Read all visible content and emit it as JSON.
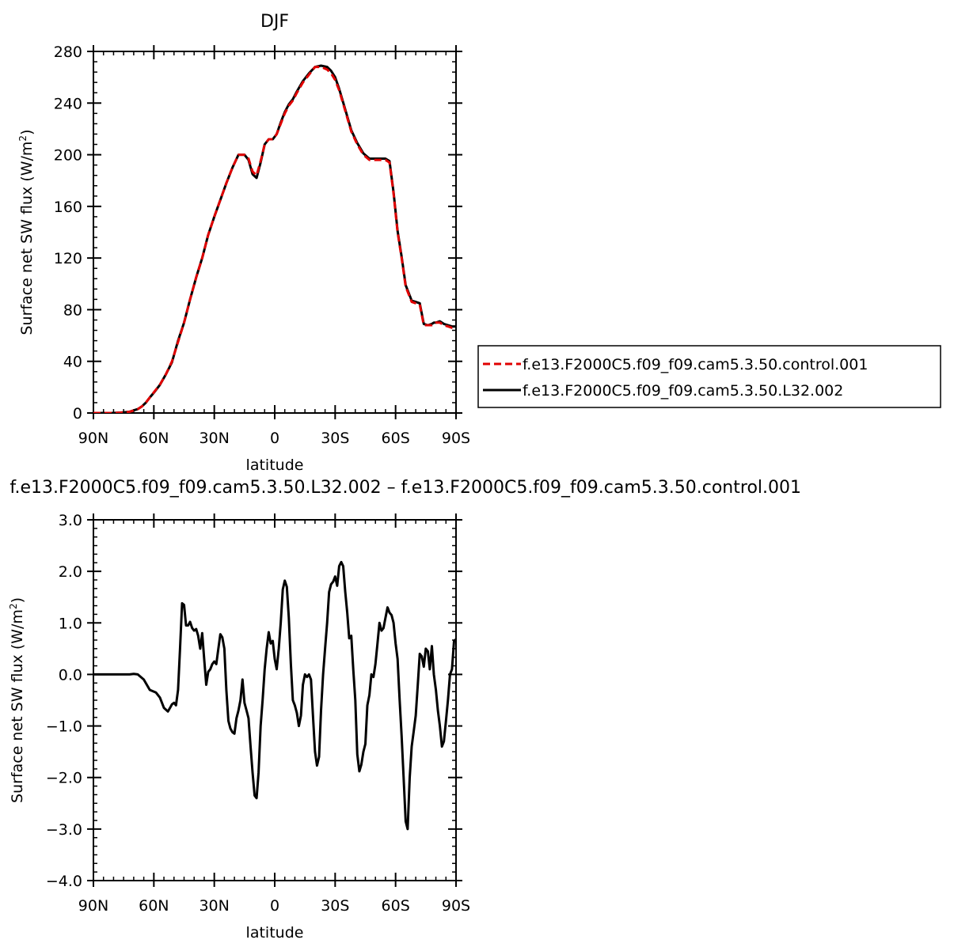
{
  "chart_data": [
    {
      "type": "line",
      "title": "DJF",
      "xlabel": "latitude",
      "ylabel": "Surface net SW flux (W/m²)",
      "ylabel_text": "Surface net SW flux (W/m",
      "ylabel_sup": "2",
      "ylabel_close": ")",
      "xlim": [
        -90,
        90
      ],
      "ylim": [
        0,
        280
      ],
      "xticks": [
        -90,
        -60,
        -30,
        0,
        30,
        60,
        90
      ],
      "xtick_labels": [
        "90N",
        "60N",
        "30N",
        "0",
        "30S",
        "60S",
        "90S"
      ],
      "yticks": [
        0,
        40,
        80,
        120,
        160,
        200,
        240,
        280
      ],
      "ytick_labels": [
        "0",
        "40",
        "80",
        "120",
        "160",
        "200",
        "240",
        "280"
      ],
      "legend_position": "right",
      "series": [
        {
          "name": "f.e13.F2000C5.f09_f09.cam5.3.50.control.001",
          "color": "#e00000",
          "dash": "dashed",
          "x": [
            -90,
            -80,
            -75,
            -72,
            -70,
            -68,
            -66,
            -64,
            -62,
            -60,
            -57,
            -54,
            -51,
            -48,
            -45,
            -42,
            -39,
            -36,
            -33,
            -30,
            -27,
            -24,
            -21,
            -18,
            -15,
            -13,
            -11,
            -9,
            -7,
            -5,
            -3,
            -1,
            1,
            3,
            5,
            7,
            9,
            11,
            14,
            17,
            20,
            23,
            26,
            28,
            30,
            32,
            35,
            38,
            41,
            44,
            47,
            50,
            53,
            55,
            57,
            59,
            61,
            63,
            65,
            67,
            68,
            70,
            72,
            74,
            76,
            78,
            79,
            80,
            82,
            84,
            86,
            88,
            90
          ],
          "y": [
            0,
            0,
            0.5,
            1,
            2,
            3,
            5,
            8,
            12,
            16,
            22,
            30,
            40,
            55,
            70,
            88,
            105,
            120,
            138,
            152,
            165,
            178,
            190,
            200,
            200,
            197,
            187,
            184,
            195,
            208,
            212,
            212,
            216,
            224,
            232,
            238,
            242,
            248,
            256,
            262,
            268,
            268,
            266,
            263,
            258,
            250,
            234,
            218,
            208,
            200,
            196,
            196,
            196,
            196,
            194,
            170,
            140,
            120,
            98,
            90,
            86,
            85,
            84,
            68,
            68,
            68,
            69,
            70,
            70,
            68,
            67,
            66,
            66
          ]
        },
        {
          "name": "f.e13.F2000C5.f09_f09.cam5.3.50.L32.002",
          "color": "#000000",
          "dash": "solid",
          "x": [
            -90,
            -80,
            -75,
            -72,
            -70,
            -68,
            -66,
            -64,
            -62,
            -60,
            -57,
            -54,
            -51,
            -48,
            -45,
            -42,
            -39,
            -36,
            -33,
            -30,
            -27,
            -24,
            -21,
            -18,
            -15,
            -13,
            -11,
            -9,
            -7,
            -5,
            -3,
            -1,
            1,
            3,
            5,
            7,
            9,
            11,
            14,
            17,
            20,
            23,
            26,
            28,
            30,
            32,
            35,
            38,
            41,
            44,
            47,
            50,
            53,
            55,
            57,
            59,
            61,
            63,
            65,
            67,
            68,
            70,
            72,
            74,
            76,
            78,
            79,
            80,
            82,
            84,
            86,
            88,
            90
          ],
          "y": [
            0,
            0,
            0.5,
            1,
            2,
            3,
            5,
            8,
            12,
            15.7,
            21.8,
            30,
            39.3,
            56,
            70,
            88,
            105,
            120,
            138,
            152,
            165,
            178,
            190,
            200,
            200,
            196,
            185,
            182,
            194,
            208,
            212,
            212,
            216,
            225,
            233,
            239,
            243,
            249,
            257,
            263,
            268,
            269,
            268,
            265,
            260,
            251,
            235,
            219,
            209,
            201,
            197,
            197,
            197,
            197,
            195,
            171,
            141,
            121,
            99,
            91,
            87,
            86,
            85,
            69,
            68,
            69,
            70,
            70,
            71,
            69,
            68,
            67,
            67
          ]
        }
      ]
    },
    {
      "type": "line",
      "title": "f.e13.F2000C5.f09_f09.cam5.3.50.L32.002 – f.e13.F2000C5.f09_f09.cam5.3.50.control.001",
      "xlabel": "latitude",
      "ylabel": "Surface net SW flux (W/m²)",
      "ylabel_text": "Surface net SW flux (W/m",
      "ylabel_sup": "2",
      "ylabel_close": ")",
      "xlim": [
        -90,
        90
      ],
      "ylim": [
        -4.0,
        3.0
      ],
      "xticks": [
        -90,
        -60,
        -30,
        0,
        30,
        60,
        90
      ],
      "xtick_labels": [
        "90N",
        "60N",
        "30N",
        "0",
        "30S",
        "60S",
        "90S"
      ],
      "yticks": [
        -4,
        -3,
        -2,
        -1,
        0,
        1,
        2,
        3
      ],
      "ytick_labels": [
        "−4.0",
        "−3.0",
        "−2.0",
        "−1.0",
        "0.0",
        "1.0",
        "2.0",
        "3.0"
      ],
      "series": [
        {
          "color": "#000000",
          "dash": "solid",
          "x": [
            -90,
            -72,
            -70,
            -68,
            -65,
            -62,
            -59,
            -57,
            -55,
            -53,
            -52,
            -51,
            -50,
            -49,
            -48,
            -47,
            -46,
            -45,
            -44,
            -43,
            -42,
            -41,
            -40,
            -39,
            -38,
            -37,
            -36,
            -35,
            -34,
            -33,
            -32,
            -31,
            -30,
            -29,
            -28,
            -27,
            -26,
            -25,
            -24,
            -23,
            -22,
            -21,
            -20,
            -19,
            -18,
            -17,
            -16,
            -15,
            -14,
            -13,
            -12,
            -11,
            -10,
            -9,
            -8,
            -7,
            -6,
            -5,
            -4,
            -3,
            -2,
            -1,
            0,
            1,
            2,
            3,
            4,
            5,
            6,
            7,
            8,
            9,
            10,
            11,
            12,
            13,
            14,
            15,
            16,
            17,
            18,
            19,
            20,
            21,
            22,
            23,
            24,
            25,
            26,
            27,
            28,
            29,
            30,
            31,
            32,
            33,
            34,
            35,
            36,
            37,
            38,
            39,
            40,
            41,
            42,
            43,
            44,
            45,
            46,
            47,
            48,
            49,
            50,
            51,
            52,
            53,
            54,
            55,
            56,
            57,
            58,
            59,
            60,
            61,
            62,
            63,
            64,
            65,
            66,
            67,
            68,
            69,
            70,
            71,
            72,
            73,
            74,
            75,
            76,
            77,
            78,
            79,
            80,
            81,
            82,
            83,
            84,
            85,
            86,
            87,
            88,
            89,
            90
          ],
          "y": [
            0,
            0,
            0.01,
            0,
            -0.1,
            -0.3,
            -0.35,
            -0.45,
            -0.65,
            -0.72,
            -0.65,
            -0.58,
            -0.55,
            -0.6,
            -0.3,
            0.5,
            1.38,
            1.35,
            0.95,
            0.95,
            1.02,
            0.9,
            0.85,
            0.88,
            0.75,
            0.5,
            0.8,
            0.3,
            -0.2,
            0.05,
            0.1,
            0.2,
            0.25,
            0.2,
            0.5,
            0.78,
            0.72,
            0.5,
            -0.3,
            -0.9,
            -1.05,
            -1.12,
            -1.15,
            -0.85,
            -0.7,
            -0.5,
            -0.1,
            -0.55,
            -0.7,
            -0.85,
            -1.4,
            -1.9,
            -2.35,
            -2.4,
            -1.9,
            -1.0,
            -0.5,
            0.1,
            0.5,
            0.82,
            0.6,
            0.65,
            0.3,
            0.1,
            0.5,
            1.0,
            1.65,
            1.82,
            1.7,
            1.1,
            0.2,
            -0.5,
            -0.6,
            -0.75,
            -1.0,
            -0.8,
            -0.2,
            0.0,
            -0.05,
            0.0,
            -0.1,
            -0.8,
            -1.5,
            -1.77,
            -1.6,
            -0.7,
            0.0,
            0.5,
            1.0,
            1.6,
            1.75,
            1.8,
            1.9,
            1.72,
            2.1,
            2.18,
            2.1,
            1.6,
            1.2,
            0.7,
            0.75,
            0.1,
            -0.5,
            -1.55,
            -1.88,
            -1.75,
            -1.5,
            -1.35,
            -0.6,
            -0.4,
            0.0,
            -0.05,
            0.2,
            0.6,
            1.0,
            0.85,
            0.9,
            1.1,
            1.3,
            1.2,
            1.15,
            1.0,
            0.6,
            0.3,
            -0.5,
            -1.2,
            -2.0,
            -2.85,
            -3.0,
            -2.0,
            -1.4,
            -1.1,
            -0.8,
            -0.2,
            0.4,
            0.35,
            0.15,
            0.5,
            0.45,
            0.1,
            0.55,
            0.0,
            -0.3,
            -0.7,
            -1.0,
            -1.4,
            -1.3,
            -0.9,
            -0.5,
            0.0,
            0.1,
            0.65,
            0.68
          ]
        }
      ]
    }
  ]
}
